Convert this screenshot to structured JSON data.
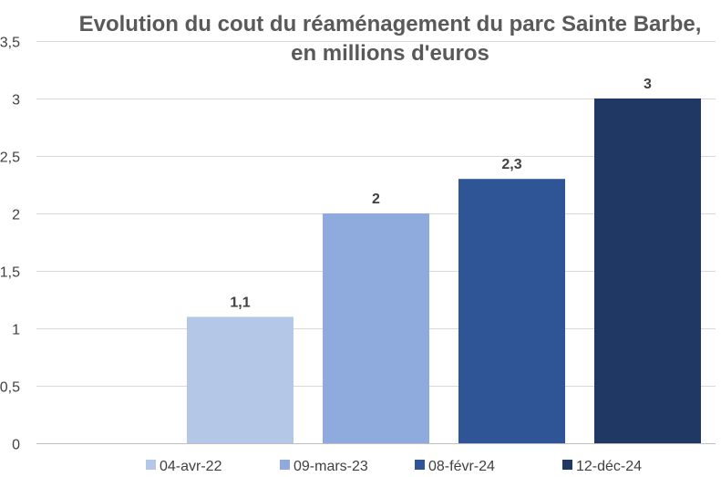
{
  "chart_data": {
    "type": "bar",
    "title_lines": [
      "Evolution du cout du réaménagement du parc Sainte Barbe,",
      "en millions d'euros"
    ],
    "categories": [
      "04-avr-22",
      "09-mars-23",
      "08-févr-24",
      "12-déc-24"
    ],
    "values": [
      1.1,
      2,
      2.3,
      3
    ],
    "data_labels": [
      "1,1",
      "2",
      "2,3",
      "3"
    ],
    "colors": [
      "#b4c7e7",
      "#8faadc",
      "#2f5597",
      "#203864"
    ],
    "ylim": [
      0,
      3.5
    ],
    "yticks": [
      0,
      0.5,
      1,
      1.5,
      2,
      2.5,
      3,
      3.5
    ],
    "ytick_labels": [
      "0",
      "0,5",
      "1",
      "1,5",
      "2",
      "2,5",
      "3",
      "3,5"
    ],
    "grid": true,
    "legend_position": "bottom",
    "x_axis_labels_shown": false
  }
}
